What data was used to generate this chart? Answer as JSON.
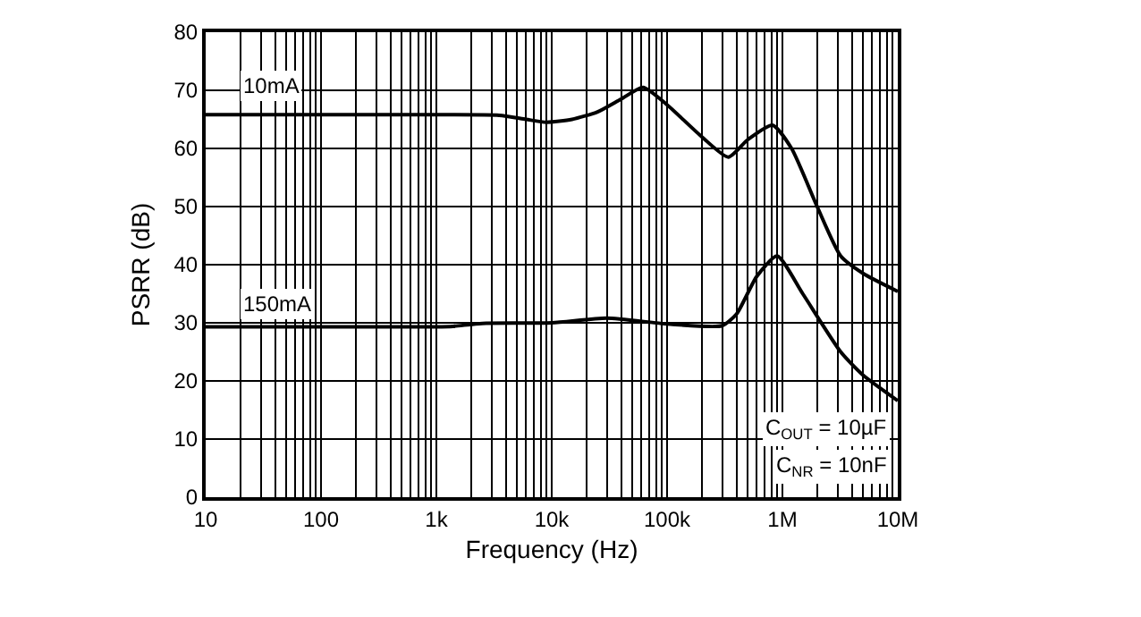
{
  "chart_data": {
    "type": "line",
    "xlabel": "Frequency (Hz)",
    "ylabel": "PSRR (dB)",
    "log": "x",
    "grid": true,
    "marker": "none",
    "line_style": "solid",
    "xlim": [
      10,
      10000000
    ],
    "ylim": [
      0,
      80
    ],
    "xticks": [
      {
        "value": 10,
        "label": "10"
      },
      {
        "value": 100,
        "label": "100"
      },
      {
        "value": 1000,
        "label": "1k"
      },
      {
        "value": 10000,
        "label": "10k"
      },
      {
        "value": 100000,
        "label": "100k"
      },
      {
        "value": 1000000,
        "label": "1M"
      },
      {
        "value": 10000000,
        "label": "10M"
      }
    ],
    "yticks": [
      0,
      10,
      20,
      30,
      40,
      50,
      60,
      70,
      80
    ],
    "series": [
      {
        "name": "10mA",
        "color": "#000000",
        "x": [
          10,
          100,
          1000,
          3500,
          6000,
          9000,
          15000,
          25000,
          40000,
          62000,
          100000,
          200000,
          340000,
          500000,
          820000,
          1200000,
          2000000,
          3200000,
          5000000,
          10000000
        ],
        "values": [
          65.8,
          65.8,
          65.8,
          65.7,
          65.0,
          64.5,
          65.0,
          66.3,
          68.5,
          70.5,
          67.5,
          62.0,
          58.5,
          61.5,
          64.0,
          60.0,
          50.0,
          41.5,
          38.5,
          35.4
        ]
      },
      {
        "name": "150mA",
        "color": "#000000",
        "x": [
          10,
          100,
          1000,
          1400,
          2500,
          10000,
          30000,
          100000,
          300000,
          400000,
          600000,
          900000,
          1500000,
          3200000,
          5000000,
          10000000
        ],
        "values": [
          29.3,
          29.3,
          29.3,
          29.4,
          29.9,
          30.0,
          30.8,
          29.8,
          29.5,
          31.5,
          38.0,
          41.5,
          35.0,
          25.0,
          21.0,
          16.6
        ]
      }
    ],
    "annotations": [
      "C$_{OUT}$ = 10µF",
      "C$_{NR}$ = 10nF"
    ]
  }
}
